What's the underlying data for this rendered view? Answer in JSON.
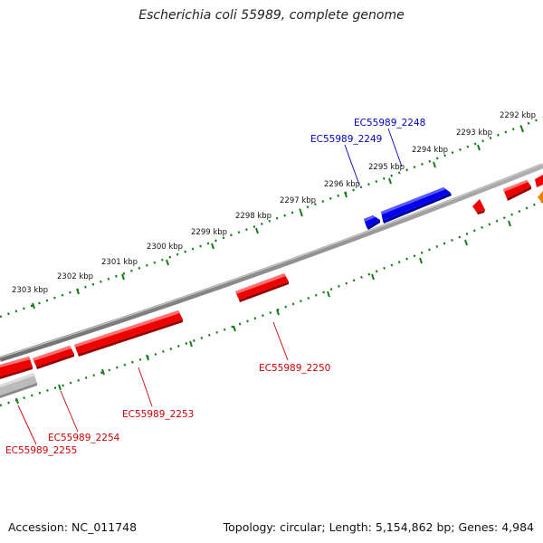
{
  "title": "Escherichia coli 55989, complete genome",
  "footer": {
    "accession": "Accession: NC_011748",
    "summary": "Topology: circular; Length: 5,154,862 bp; Genes: 4,984"
  },
  "colors": {
    "forward_gene": "#ee0000",
    "forward_highlight": "#0000ee",
    "reverse_gene": "#ee0000",
    "pseudo_gene": "#bbbbbb",
    "other_gene": "#f08000",
    "backbone": "#808080",
    "ticks": "#1a7a1a",
    "label_red": "#cc0000",
    "label_blue": "#0000bb"
  },
  "scale_ticks": [
    "2292 kbp",
    "2293 kbp",
    "2294 kbp",
    "2295 kbp",
    "2296 kbp",
    "2297 kbp",
    "2298 kbp",
    "2299 kbp",
    "2300 kbp",
    "2301 kbp",
    "2302 kbp",
    "2303 kbp"
  ],
  "gene_labels": [
    "EC55989_2248",
    "EC55989_2249",
    "EC55989_2250",
    "EC55989_2253",
    "EC55989_2254",
    "EC55989_2255"
  ]
}
